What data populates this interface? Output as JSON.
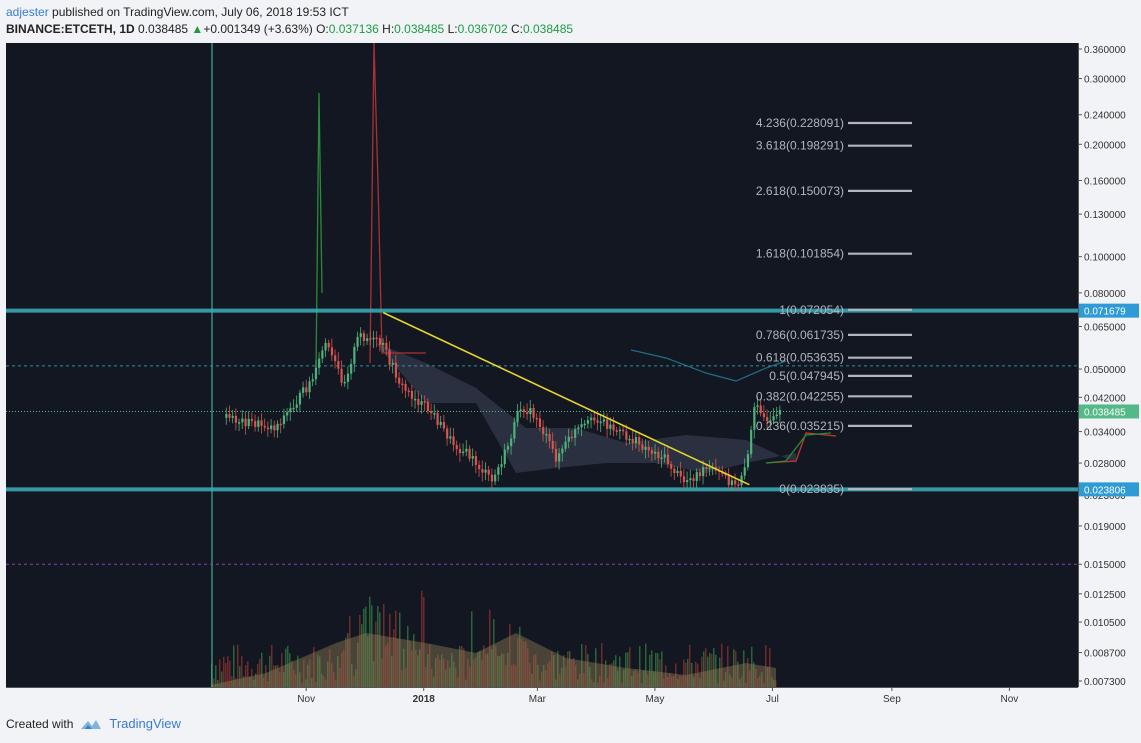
{
  "header": {
    "user": "adjester",
    "published": " published on TradingView.com, July 06, 2018 19:53 ICT",
    "symbol": "BINANCE:ETCETH, 1D",
    "last": "0.038485",
    "change_arrow": "▲",
    "change": "+0.001349 (+3.63%)",
    "o_label": "O:",
    "o_value": "0.037136",
    "h_label": "H:",
    "h_value": "0.038485",
    "l_label": "L:",
    "l_value": "0.036702",
    "c_label": "C:",
    "c_value": "0.038485"
  },
  "footer": {
    "created_with": "Created with",
    "brand": "TradingView"
  },
  "colors": {
    "background": "#131722",
    "up": "#4db37a",
    "down": "#d9534f",
    "trendline": "#e6d62b",
    "level": "#3bb0bd",
    "fib": "#b2b5be",
    "price_badge": "#53b987",
    "level_badge": "#2f9bd6",
    "volume_ma": "#8d7a55"
  },
  "chart_data": {
    "type": "candlestick",
    "scale": "log",
    "ylim": [
      0.0073,
      0.36
    ],
    "y_ticks": [
      "0.360000",
      "0.300000",
      "0.240000",
      "0.200000",
      "0.160000",
      "0.130000",
      "0.100000",
      "0.080000",
      "0.065000",
      "0.050000",
      "0.042000",
      "0.034000",
      "0.028000",
      "0.023000",
      "0.019000",
      "0.015000",
      "0.012500",
      "0.010500",
      "0.008700",
      "0.007300"
    ],
    "x_ticks": [
      "Nov",
      "2018",
      "Mar",
      "May",
      "Jul",
      "Sep",
      "Nov"
    ],
    "price_badges": [
      {
        "label": "0.071679",
        "value": 0.071679,
        "kind": "level"
      },
      {
        "label": "0.038485",
        "value": 0.038485,
        "kind": "price"
      },
      {
        "label": "0.023806",
        "value": 0.023806,
        "kind": "level"
      }
    ],
    "horizontal_levels": [
      0.071679,
      0.023806
    ],
    "dotted_levels": [
      0.051,
      0.015
    ],
    "trendline": [
      {
        "date": "2017-12-11",
        "value": 0.0708
      },
      {
        "date": "2018-06-19",
        "value": 0.0245
      }
    ],
    "fibonacci": [
      {
        "label": "4.236(0.228091)",
        "value": 0.228091
      },
      {
        "label": "3.618(0.198291)",
        "value": 0.198291
      },
      {
        "label": "2.618(0.150073)",
        "value": 0.150073
      },
      {
        "label": "1.618(0.101854)",
        "value": 0.101854
      },
      {
        "label": "1(0.072054)",
        "value": 0.072054
      },
      {
        "label": "0.786(0.061735)",
        "value": 0.061735
      },
      {
        "label": "0.618(0.053635)",
        "value": 0.053635
      },
      {
        "label": "0.5(0.047945)",
        "value": 0.047945
      },
      {
        "label": "0.382(0.042255)",
        "value": 0.042255
      },
      {
        "label": "0.236(0.035215)",
        "value": 0.035215
      },
      {
        "label": "0(0.023835)",
        "value": 0.023835
      }
    ],
    "price_path": [
      {
        "date": "2017-09-20",
        "value": 0.037
      },
      {
        "date": "2017-10-15",
        "value": 0.035
      },
      {
        "date": "2017-10-25",
        "value": 0.04
      },
      {
        "date": "2017-11-05",
        "value": 0.048
      },
      {
        "date": "2017-11-10",
        "value": 0.059
      },
      {
        "date": "2017-11-20",
        "value": 0.046
      },
      {
        "date": "2017-11-28",
        "value": 0.062
      },
      {
        "date": "2017-12-10",
        "value": 0.058
      },
      {
        "date": "2017-12-20",
        "value": 0.045
      },
      {
        "date": "2018-01-05",
        "value": 0.038
      },
      {
        "date": "2018-01-15",
        "value": 0.032
      },
      {
        "date": "2018-01-25",
        "value": 0.029
      },
      {
        "date": "2018-02-05",
        "value": 0.025
      },
      {
        "date": "2018-02-12",
        "value": 0.03
      },
      {
        "date": "2018-02-20",
        "value": 0.04
      },
      {
        "date": "2018-02-28",
        "value": 0.037
      },
      {
        "date": "2018-03-10",
        "value": 0.029
      },
      {
        "date": "2018-03-20",
        "value": 0.034
      },
      {
        "date": "2018-04-01",
        "value": 0.037
      },
      {
        "date": "2018-04-15",
        "value": 0.033
      },
      {
        "date": "2018-04-25",
        "value": 0.031
      },
      {
        "date": "2018-05-05",
        "value": 0.029
      },
      {
        "date": "2018-05-15",
        "value": 0.025
      },
      {
        "date": "2018-05-28",
        "value": 0.027
      },
      {
        "date": "2018-06-05",
        "value": 0.026
      },
      {
        "date": "2018-06-12",
        "value": 0.024
      },
      {
        "date": "2018-06-18",
        "value": 0.03
      },
      {
        "date": "2018-06-22",
        "value": 0.042
      },
      {
        "date": "2018-06-28",
        "value": 0.035
      },
      {
        "date": "2018-07-06",
        "value": 0.038485
      }
    ]
  }
}
